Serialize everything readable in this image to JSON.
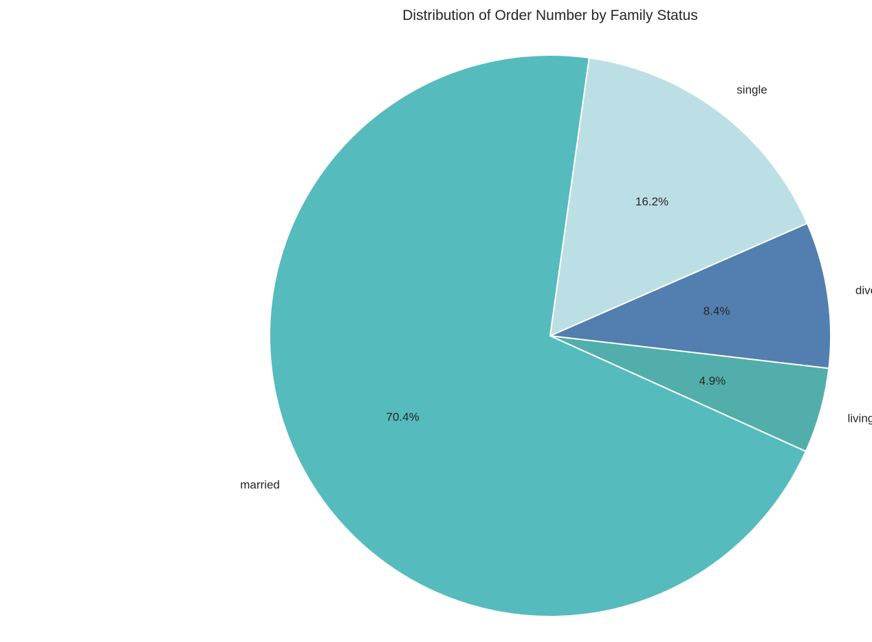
{
  "chart_data": {
    "type": "pie",
    "title": "Distribution of Order Number by Family Status",
    "categories": [
      "married",
      "living with parents and siblings",
      "divorced/widowed",
      "single"
    ],
    "values": [
      70.4,
      4.9,
      8.4,
      16.2
    ],
    "value_labels": [
      "70.4%",
      "4.9%",
      "8.4%",
      "16.2%"
    ],
    "colors": [
      "#56bbbd",
      "#52aeab",
      "#527faf",
      "#bbdfe4"
    ],
    "wedge_edge_color": "#ffffff",
    "start_angle_deg": 82,
    "direction": "counterclockwise",
    "legend": "none"
  }
}
